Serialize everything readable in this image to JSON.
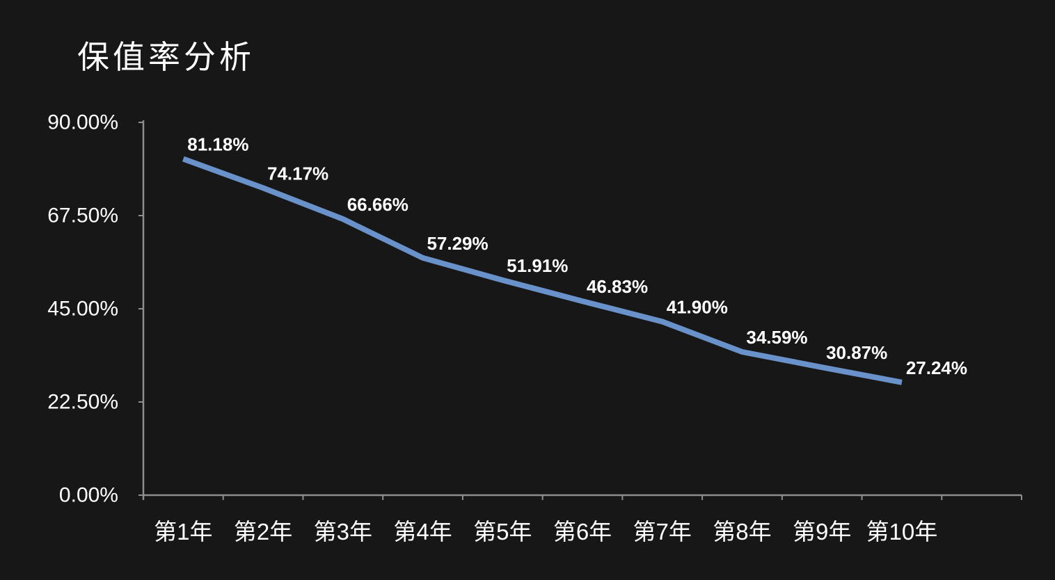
{
  "page": {
    "background_color": "#171717",
    "text_color": "#ffffff"
  },
  "chart_data": {
    "type": "line",
    "title": "保值率分析",
    "categories": [
      "第1年",
      "第2年",
      "第3年",
      "第4年",
      "第5年",
      "第6年",
      "第7年",
      "第8年",
      "第9年",
      "第10年"
    ],
    "values": [
      81.18,
      74.17,
      66.66,
      57.29,
      51.91,
      46.83,
      41.9,
      34.59,
      30.87,
      27.24
    ],
    "point_labels": [
      "81.18%",
      "74.17%",
      "66.66%",
      "57.29%",
      "51.91%",
      "46.83%",
      "41.90%",
      "34.59%",
      "30.87%",
      "27.24%"
    ],
    "xlabel": "",
    "ylabel": "",
    "ylim": [
      0,
      90
    ],
    "yticks": {
      "values": [
        0,
        22.5,
        45,
        67.5,
        90
      ],
      "labels": [
        "0.00%",
        "22.50%",
        "45.00%",
        "67.50%",
        "90.00%"
      ]
    },
    "grid": false,
    "legend": false,
    "colors": {
      "line": "#6a92ca",
      "axis": "#8e8e8e",
      "label_text": "#ffffff"
    }
  }
}
